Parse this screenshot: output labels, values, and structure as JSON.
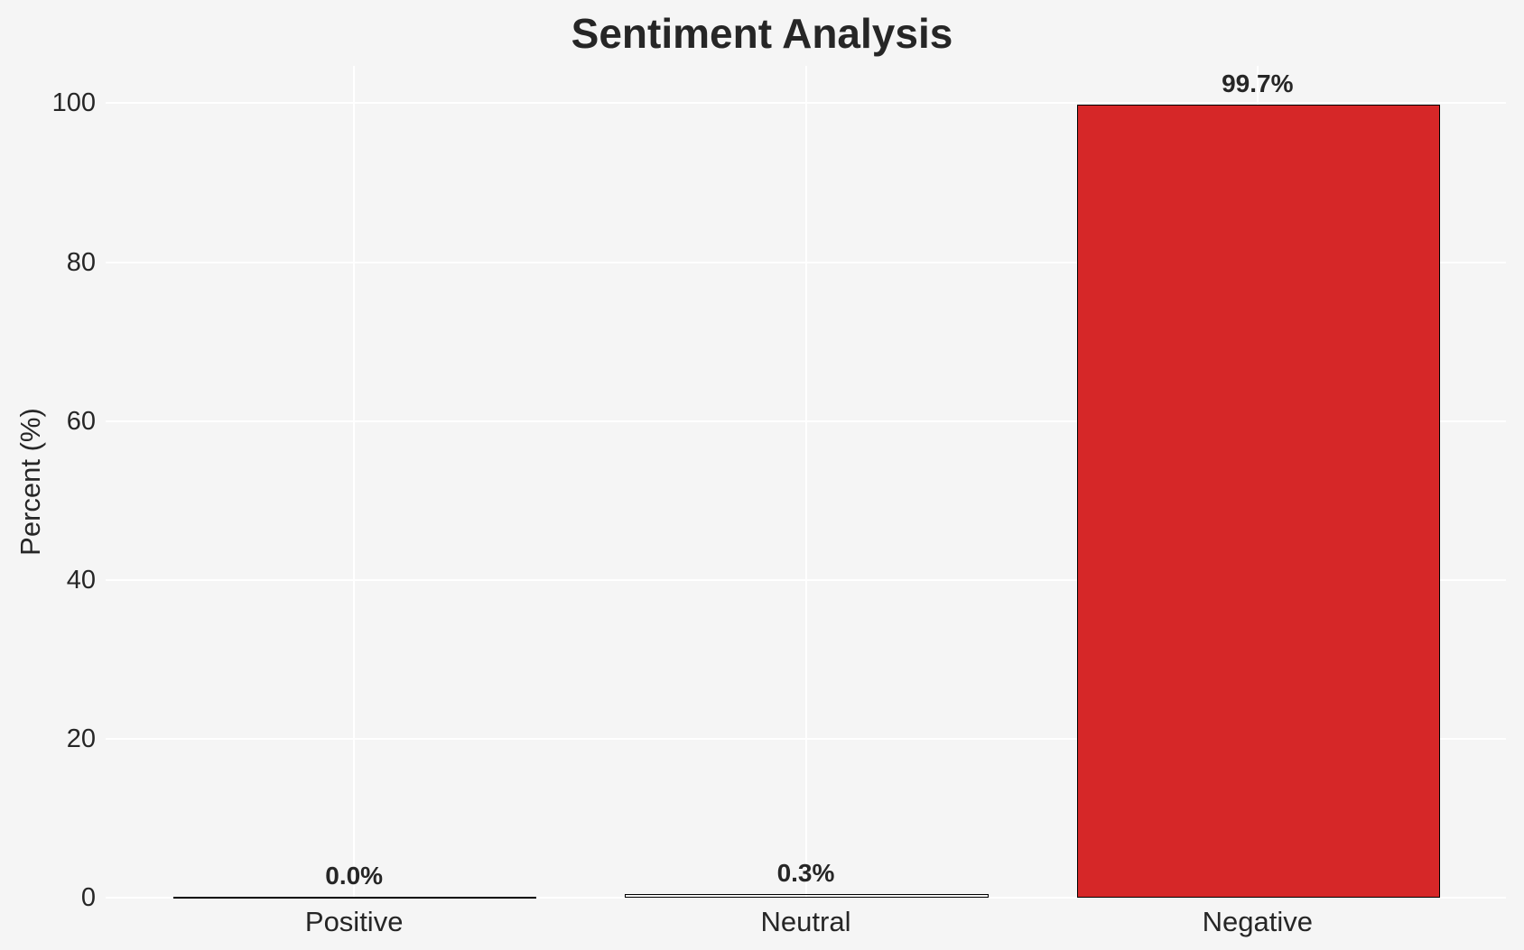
{
  "chart_data": {
    "type": "bar",
    "title": "Sentiment Analysis",
    "xlabel": "",
    "ylabel": "Percent (%)",
    "categories": [
      "Positive",
      "Neutral",
      "Negative"
    ],
    "values": [
      0.0,
      0.3,
      99.7
    ],
    "value_labels": [
      "0.0%",
      "0.3%",
      "99.7%"
    ],
    "yticks": [
      0,
      20,
      40,
      60,
      80,
      100
    ],
    "ylim": [
      0,
      104.7
    ],
    "grid": "on",
    "legend": "none",
    "layout_hints": {
      "gridlines": "horizontal at each ytick and vertical at each category center",
      "bar_edge_visible": true
    },
    "colors": {
      "background": "#f5f5f5",
      "grid_line": "#ffffff",
      "bar_edge": "#000000",
      "text": "#262626",
      "bar_fills": [
        null,
        null,
        "#d62728"
      ]
    }
  }
}
